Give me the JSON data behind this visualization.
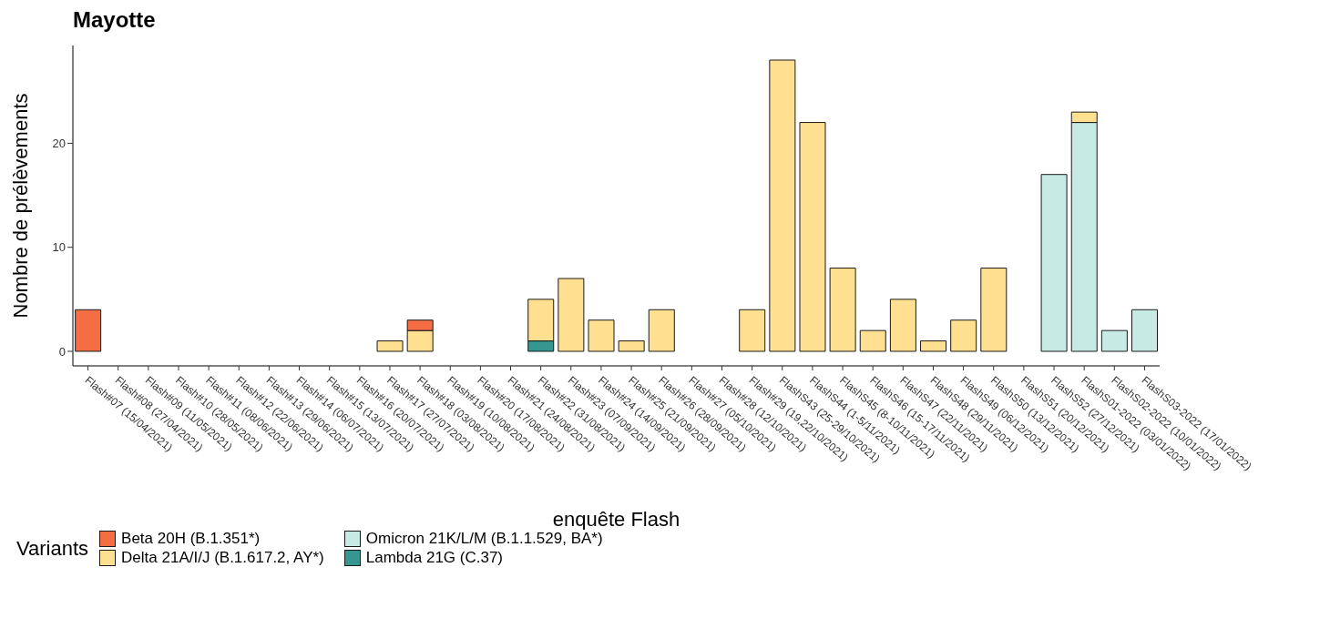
{
  "chart_data": {
    "type": "bar",
    "title": "Mayotte",
    "xlabel": "enquête Flash",
    "ylabel": "Nombre de prélèvements",
    "legend_title": "Variants",
    "stacked": true,
    "legend": "bottom",
    "grid": false,
    "categories": [
      "Flash#07 (15/04/2021)",
      "Flash#08 (27/04/2021)",
      "Flash#09 (11/05/2021)",
      "Flash#10 (28/05/2021)",
      "Flash#11 (08/06/2021)",
      "Flash#12 (22/06/2021)",
      "Flash#13 (29/06/2021)",
      "Flash#14 (06/07/2021)",
      "Flash#15 (13/07/2021)",
      "Flash#16 (20/07/2021)",
      "Flash#17 (27/07/2021)",
      "Flash#18 (03/08/2021)",
      "Flash#19 (10/08/2021)",
      "Flash#20 (17/08/2021)",
      "Flash#21 (24/08/2021)",
      "Flash#22 (31/08/2021)",
      "Flash#23 (07/09/2021)",
      "Flash#24 (14/09/2021)",
      "Flash#25 (21/09/2021)",
      "Flash#26 (28/09/2021)",
      "Flash#27 (05/10/2021)",
      "Flash#28 (12/10/2021)",
      "Flash#29 (19,22/10/2021)",
      "FlashS43 (25-29/10/2021)",
      "FlashS44 (1-5/11/2021)",
      "FlashS45 (8-10/11/2021)",
      "FlashS46 (15-17/11/2021)",
      "FlashS47 (22/11/2021)",
      "FlashS48 (29/11/2021)",
      "FlashS49 (06/12/2021)",
      "FlashS50 (13/12/2021)",
      "FlashS51 (20/12/2021)",
      "FlashS52 (27/12/2021)",
      "FlashS01-2022 (03/01/2022)",
      "FlashS02-2022 (10/01/2022)",
      "FlashS03-2022 (17/01/2022)"
    ],
    "series": [
      {
        "name": "Lambda 21G (C.37)",
        "color": "#35978f",
        "values": [
          null,
          null,
          null,
          null,
          null,
          null,
          null,
          null,
          null,
          null,
          null,
          null,
          null,
          null,
          null,
          1,
          null,
          null,
          null,
          null,
          null,
          null,
          null,
          null,
          null,
          null,
          null,
          null,
          null,
          null,
          null,
          null,
          null,
          null,
          null,
          null
        ]
      },
      {
        "name": "Omicron 21K/L/M (B.1.1.529, BA*)",
        "color": "#c7eae5",
        "values": [
          null,
          null,
          null,
          null,
          null,
          null,
          null,
          null,
          null,
          null,
          null,
          null,
          null,
          null,
          null,
          null,
          null,
          null,
          null,
          null,
          null,
          null,
          null,
          null,
          null,
          null,
          null,
          null,
          null,
          null,
          null,
          null,
          17,
          22,
          2,
          4
        ]
      },
      {
        "name": "Delta 21A/I/J (B.1.617.2, AY*)",
        "color": "#fee090",
        "values": [
          null,
          null,
          null,
          null,
          null,
          null,
          null,
          null,
          null,
          null,
          1,
          2,
          null,
          null,
          null,
          4,
          7,
          3,
          1,
          4,
          null,
          null,
          4,
          28,
          22,
          8,
          2,
          5,
          1,
          3,
          8,
          null,
          null,
          1,
          null,
          null
        ]
      },
      {
        "name": "Beta 20H (B.1.351*)",
        "color": "#f46d43",
        "values": [
          4,
          null,
          null,
          null,
          null,
          null,
          null,
          null,
          null,
          null,
          null,
          1,
          null,
          null,
          null,
          null,
          null,
          null,
          null,
          null,
          null,
          null,
          null,
          null,
          null,
          null,
          null,
          null,
          null,
          null,
          null,
          null,
          null,
          null,
          null,
          null
        ]
      }
    ],
    "ylim": [
      -1.4,
      29.4
    ],
    "yticks": [
      0,
      10,
      20
    ]
  }
}
